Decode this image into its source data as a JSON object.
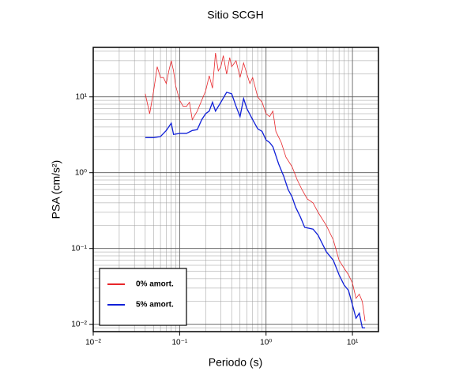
{
  "chart_data": {
    "type": "line",
    "title": "Sitio SCGH",
    "xlabel": "Periodo (s)",
    "ylabel": "PSA (cm/s²)",
    "xscale": "log",
    "yscale": "log",
    "grid": true,
    "minor_grid": true,
    "legend": "lower left",
    "xlim": [
      0.01,
      20
    ],
    "ylim": [
      0.008,
      45
    ],
    "xticks": [
      {
        "value": 0.01,
        "label": "10⁻²"
      },
      {
        "value": 0.1,
        "label": "10⁻¹"
      },
      {
        "value": 1,
        "label": "10⁰"
      },
      {
        "value": 10,
        "label": "10¹"
      }
    ],
    "yticks": [
      {
        "value": 0.01,
        "label": "10⁻²"
      },
      {
        "value": 0.1,
        "label": "10⁻¹"
      },
      {
        "value": 1,
        "label": "10⁰"
      },
      {
        "value": 10,
        "label": "10¹"
      }
    ],
    "series": [
      {
        "name": "0% amort.",
        "color": "#e8262a",
        "x": [
          0.04,
          0.045,
          0.05,
          0.055,
          0.06,
          0.065,
          0.07,
          0.075,
          0.08,
          0.085,
          0.09,
          0.1,
          0.11,
          0.12,
          0.13,
          0.14,
          0.16,
          0.18,
          0.2,
          0.22,
          0.24,
          0.26,
          0.28,
          0.3,
          0.32,
          0.35,
          0.38,
          0.4,
          0.45,
          0.5,
          0.55,
          0.6,
          0.65,
          0.7,
          0.8,
          0.9,
          1.0,
          1.1,
          1.2,
          1.3,
          1.5,
          1.7,
          2.0,
          2.3,
          2.6,
          3.0,
          3.5,
          4.0,
          5,
          6,
          7,
          8,
          9,
          10,
          11,
          12,
          13,
          14
        ],
        "values": [
          11,
          6,
          12,
          25,
          18,
          18,
          15,
          22,
          30,
          22,
          14,
          9,
          7.5,
          7.5,
          8.5,
          5,
          6.5,
          9,
          12,
          19,
          13,
          38,
          22,
          25,
          35,
          20,
          33,
          25,
          30,
          18,
          28,
          20,
          15,
          18,
          10,
          8.5,
          6,
          5.5,
          6.5,
          3.5,
          2.5,
          1.6,
          1.2,
          0.8,
          0.6,
          0.45,
          0.4,
          0.3,
          0.2,
          0.13,
          0.07,
          0.055,
          0.045,
          0.035,
          0.022,
          0.025,
          0.02,
          0.011
        ]
      },
      {
        "name": "5% amort.",
        "color": "#1020d8",
        "x": [
          0.04,
          0.05,
          0.06,
          0.07,
          0.08,
          0.085,
          0.1,
          0.12,
          0.14,
          0.16,
          0.18,
          0.2,
          0.22,
          0.24,
          0.26,
          0.3,
          0.35,
          0.4,
          0.45,
          0.5,
          0.55,
          0.6,
          0.7,
          0.8,
          0.9,
          1.0,
          1.1,
          1.2,
          1.4,
          1.6,
          1.8,
          2.0,
          2.2,
          2.5,
          2.8,
          3.5,
          4.0,
          5,
          6,
          7,
          8,
          9,
          10,
          11,
          12,
          13,
          14
        ],
        "values": [
          2.9,
          2.9,
          3.0,
          3.6,
          4.5,
          3.2,
          3.3,
          3.3,
          3.6,
          3.7,
          5.0,
          6.0,
          6.5,
          8.5,
          6.5,
          8.5,
          11.5,
          11,
          7.5,
          5.5,
          9.5,
          7,
          5,
          3.8,
          3.5,
          2.7,
          2.5,
          2.2,
          1.3,
          0.9,
          0.6,
          0.48,
          0.35,
          0.26,
          0.19,
          0.18,
          0.15,
          0.09,
          0.07,
          0.045,
          0.033,
          0.028,
          0.018,
          0.012,
          0.014,
          0.009,
          0.009
        ]
      }
    ]
  }
}
